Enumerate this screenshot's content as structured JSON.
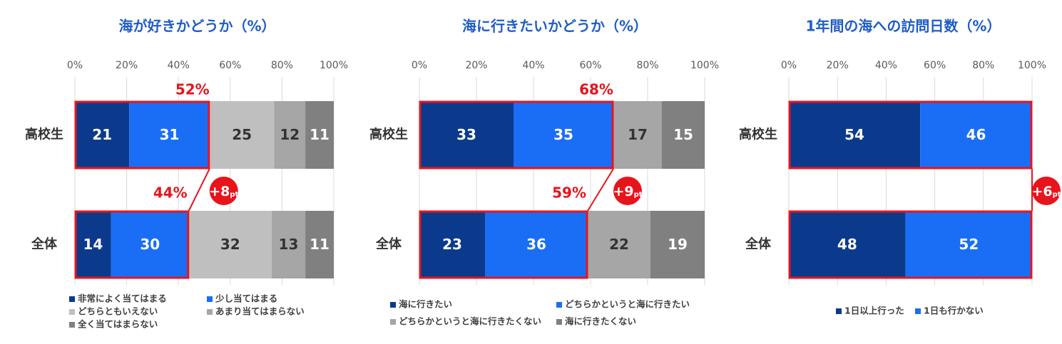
{
  "chart_data": [
    {
      "type": "stacked-bar-horizontal",
      "title": "海が好きかどうか（%）",
      "categories": [
        "高校生",
        "全体"
      ],
      "series": [
        {
          "name": "非常によく当てはまる",
          "color": "#0b3a8d",
          "values": [
            21,
            14
          ]
        },
        {
          "name": "少し当てはまる",
          "color": "#1a6ef5",
          "values": [
            31,
            30
          ]
        },
        {
          "name": "どちらともいえない",
          "color": "#bfbfbf",
          "values": [
            25,
            32
          ]
        },
        {
          "name": "あまり当てはまらない",
          "color": "#a6a6a6",
          "values": [
            12,
            13
          ]
        },
        {
          "name": "全く当てはまらない",
          "color": "#808080",
          "values": [
            11,
            11
          ]
        }
      ],
      "xlim": [
        0,
        100
      ],
      "xticks": [
        {
          "value": 0,
          "label": "0%"
        },
        {
          "value": 20,
          "label": "20%"
        },
        {
          "value": 40,
          "label": "40%"
        },
        {
          "value": 60,
          "label": "60%"
        },
        {
          "value": 80,
          "label": "80%"
        },
        {
          "value": 100,
          "label": "100%"
        }
      ],
      "grid": true,
      "highlight_labels": [
        "52%",
        "44%"
      ],
      "badge": [
        "+8",
        "pt"
      ]
    },
    {
      "type": "stacked-bar-horizontal",
      "title": "海に行きたいかどうか（%）",
      "categories": [
        "高校生",
        "全体"
      ],
      "series": [
        {
          "name": "海に行きたい",
          "color": "#0b3a8d",
          "values": [
            33,
            23
          ]
        },
        {
          "name": "どちらかというと海に行きたい",
          "color": "#1a6ef5",
          "values": [
            35,
            36
          ]
        },
        {
          "name": "どちらかというと海に行きたくない",
          "color": "#a6a6a6",
          "values": [
            17,
            22
          ]
        },
        {
          "name": "海に行きたくない",
          "color": "#808080",
          "values": [
            15,
            19
          ]
        }
      ],
      "xlim": [
        0,
        100
      ],
      "xticks": [
        {
          "value": 0,
          "label": "0%"
        },
        {
          "value": 20,
          "label": "20%"
        },
        {
          "value": 40,
          "label": "40%"
        },
        {
          "value": 60,
          "label": "60%"
        },
        {
          "value": 80,
          "label": "80%"
        },
        {
          "value": 100,
          "label": "100%"
        }
      ],
      "grid": true,
      "highlight_labels": [
        "68%",
        "59%"
      ],
      "badge": [
        "+9",
        "pt"
      ]
    },
    {
      "type": "stacked-bar-horizontal",
      "title": "1年間の海への訪問日数（%）",
      "categories": [
        "高校生",
        "全体"
      ],
      "series": [
        {
          "name": "1日以上行った",
          "color": "#0b3a8d",
          "values": [
            54,
            48
          ]
        },
        {
          "name": "1日も行かない",
          "color": "#1a6ef5",
          "values": [
            46,
            52
          ]
        }
      ],
      "xlim": [
        0,
        100
      ],
      "xticks": [
        {
          "value": 0,
          "label": "0%"
        },
        {
          "value": 20,
          "label": "20%"
        },
        {
          "value": 40,
          "label": "40%"
        },
        {
          "value": 60,
          "label": "60%"
        },
        {
          "value": 80,
          "label": "80%"
        },
        {
          "value": 100,
          "label": "100%"
        }
      ],
      "grid": true,
      "badge": [
        "+6",
        "pt"
      ]
    }
  ]
}
